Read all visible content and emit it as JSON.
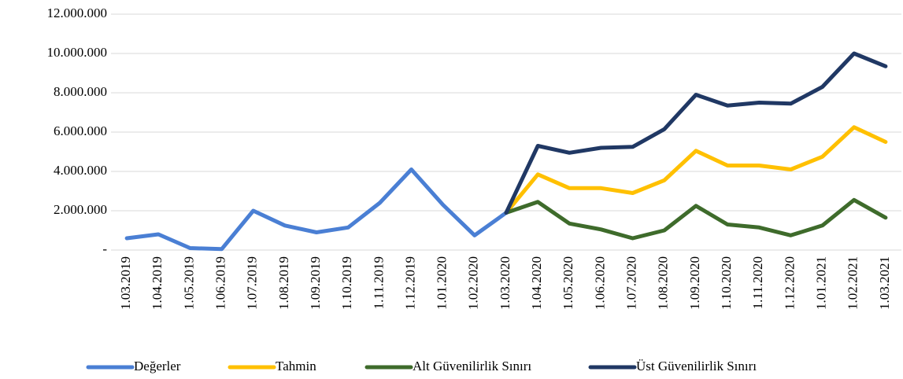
{
  "chart_data": {
    "type": "line",
    "categories": [
      "1.03.2019",
      "1.04.2019",
      "1.05.2019",
      "1.06.2019",
      "1.07.2019",
      "1.08.2019",
      "1.09.2019",
      "1.10.2019",
      "1.11.2019",
      "1.12.2019",
      "1.01.2020",
      "1.02.2020",
      "1.03.2020",
      "1.04.2020",
      "1.05.2020",
      "1.06.2020",
      "1.07.2020",
      "1.08.2020",
      "1.09.2020",
      "1.10.2020",
      "1.11.2020",
      "1.12.2020",
      "1.01.2021",
      "1.02.2021",
      "1.03.2021"
    ],
    "series": [
      {
        "name": "Değerler",
        "color": "#4a7fd4",
        "values": [
          600000,
          800000,
          100000,
          50000,
          2000000,
          1250000,
          900000,
          1150000,
          2400000,
          4100000,
          2300000,
          750000,
          1900000,
          null,
          null,
          null,
          null,
          null,
          null,
          null,
          null,
          null,
          null,
          null,
          null
        ]
      },
      {
        "name": "Tahmin",
        "color": "#ffc000",
        "values": [
          null,
          null,
          null,
          null,
          null,
          null,
          null,
          null,
          null,
          null,
          null,
          null,
          1900000,
          3850000,
          3150000,
          3150000,
          2900000,
          3550000,
          5050000,
          4300000,
          4300000,
          4100000,
          4750000,
          6250000,
          5500000
        ]
      },
      {
        "name": "Alt Güvenilirlik Sınırı",
        "color": "#3e6b2b",
        "values": [
          null,
          null,
          null,
          null,
          null,
          null,
          null,
          null,
          null,
          null,
          null,
          null,
          1900000,
          2450000,
          1350000,
          1050000,
          600000,
          1000000,
          2250000,
          1300000,
          1150000,
          750000,
          1250000,
          2550000,
          1650000
        ]
      },
      {
        "name": "Üst Güvenilirlik Sınırı",
        "color": "#203864",
        "values": [
          null,
          null,
          null,
          null,
          null,
          null,
          null,
          null,
          null,
          null,
          null,
          null,
          1900000,
          5300000,
          4950000,
          5200000,
          5250000,
          6150000,
          7900000,
          7350000,
          7500000,
          7450000,
          8300000,
          10000000,
          9350000
        ]
      }
    ],
    "ylim": [
      0,
      12000000
    ],
    "yticks": [
      {
        "value": 0,
        "label": "-"
      },
      {
        "value": 2000000,
        "label": "2.000.000"
      },
      {
        "value": 4000000,
        "label": "4.000.000"
      },
      {
        "value": 6000000,
        "label": "6.000.000"
      },
      {
        "value": 8000000,
        "label": "8.000.000"
      },
      {
        "value": 10000000,
        "label": "10.000.000"
      },
      {
        "value": 12000000,
        "label": "12.000.000"
      }
    ],
    "grid": true,
    "legend": "bottom"
  }
}
